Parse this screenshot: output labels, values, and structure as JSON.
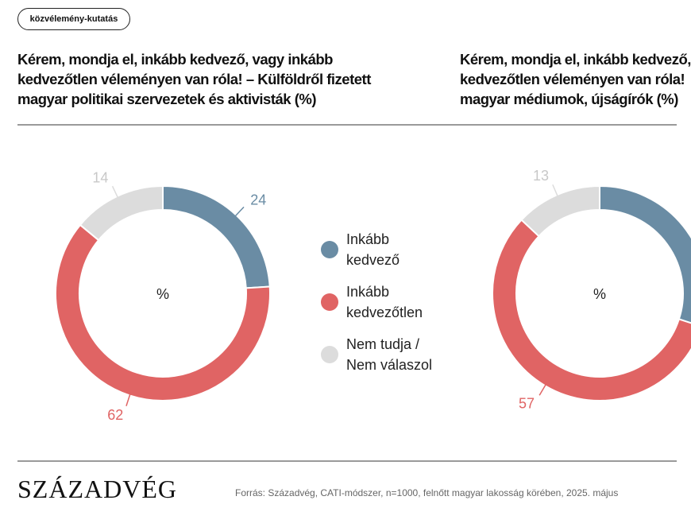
{
  "tag": "közvélemény-kutatás",
  "titles": {
    "left": [
      "Kérem, mondja el, inkább kedvező, vagy inkább",
      "kedvezőtlen véleményen van róla! – Külföldről fizetett",
      "magyar politikai szervezetek és aktivisták (%)"
    ],
    "right": [
      "Kérem, mondja el, inkább kedvező,",
      "kedvezőtlen véleményen van róla!",
      "magyar médiumok, újságírók (%)"
    ]
  },
  "legend": [
    {
      "lines": [
        "Inkább",
        "kedvező"
      ],
      "color": "#6a8ca4"
    },
    {
      "lines": [
        "Inkább",
        "kedvezőtlen"
      ],
      "color": "#e06464"
    },
    {
      "lines": [
        "Nem tudja /",
        "Nem válaszol"
      ],
      "color": "#dcdcdc"
    }
  ],
  "chart_data": [
    {
      "type": "pie",
      "center_label": "%",
      "categories": [
        "Inkább kedvező",
        "Inkább kedvezőtlen",
        "Nem tudja / Nem válaszol"
      ],
      "values": [
        24,
        62,
        14
      ],
      "colors": [
        "#6a8ca4",
        "#e06464",
        "#dcdcdc"
      ]
    },
    {
      "type": "pie",
      "center_label": "%",
      "categories": [
        "Inkább kedvező",
        "Inkább kedvezőtlen",
        "Nem tudja / Nem válaszol"
      ],
      "values": [
        30,
        57,
        13
      ],
      "colors": [
        "#6a8ca4",
        "#e06464",
        "#dcdcdc"
      ],
      "label_values": [
        null,
        57,
        13
      ]
    }
  ],
  "footer": {
    "brand": "SZÁZADVÉG",
    "source": "Forrás: Századvég, CATI-módszer, n=1000, felnőtt magyar lakosság körében, 2025. május"
  }
}
